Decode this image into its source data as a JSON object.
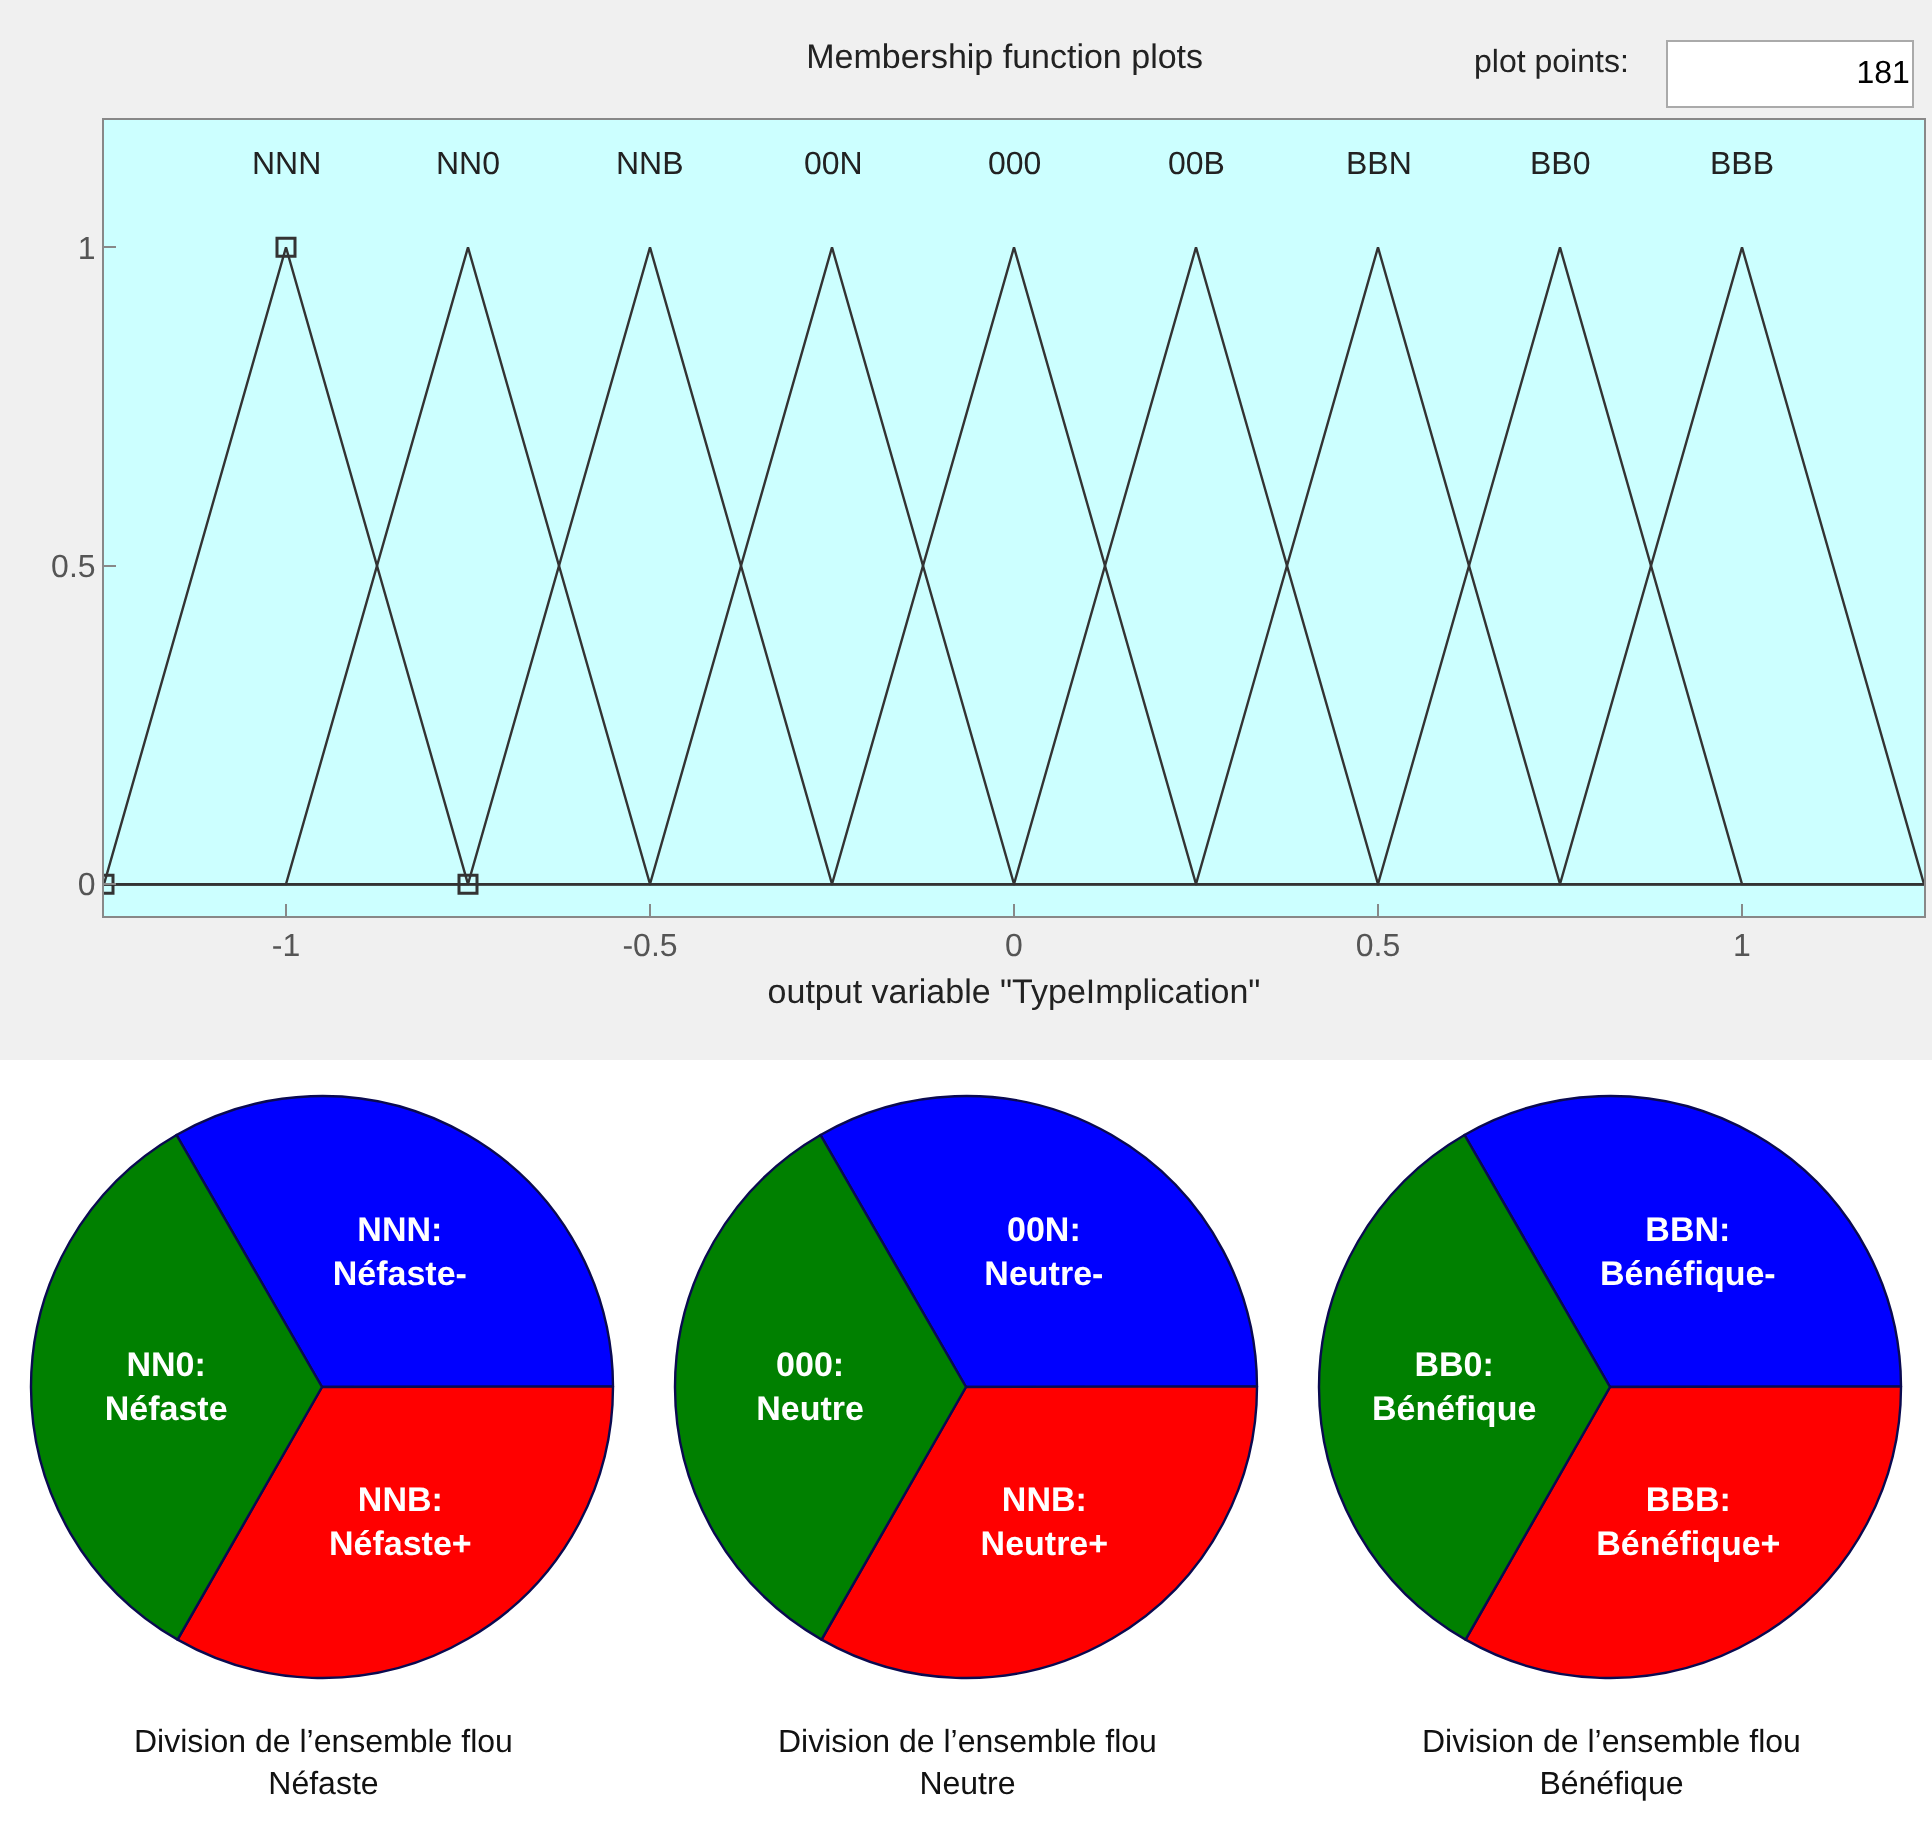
{
  "chart_data": [
    {
      "type": "line",
      "title": "Membership function plots",
      "xlabel": "output variable \"TypeImplication\"",
      "xlim": [
        -1.25,
        1.25
      ],
      "ylim": [
        -0.05,
        1.2
      ],
      "xticks": [
        -1,
        -0.5,
        0,
        0.5,
        1
      ],
      "yticks": [
        0,
        0.5,
        1
      ],
      "grid": false,
      "legend": false,
      "marker": "none",
      "line_style": "solid",
      "annotations": [
        "plot points:",
        "181"
      ],
      "series": [
        {
          "name": "NNN",
          "color": "#333333",
          "marker": "square",
          "x": [
            -1.25,
            -1,
            -0.75
          ],
          "values": [
            0,
            1,
            0
          ]
        },
        {
          "name": "NN0",
          "color": "#333333",
          "x": [
            -1.25,
            -1,
            -0.75,
            -0.5,
            1.25
          ],
          "values": [
            0,
            0,
            1,
            0,
            0
          ]
        },
        {
          "name": "NNB",
          "color": "#333333",
          "x": [
            -1.25,
            -0.75,
            -0.5,
            -0.25,
            1.25
          ],
          "values": [
            0,
            0,
            1,
            0,
            0
          ]
        },
        {
          "name": "00N",
          "color": "#333333",
          "x": [
            -1.25,
            -0.5,
            -0.25,
            0,
            1.25
          ],
          "values": [
            0,
            0,
            1,
            0,
            0
          ]
        },
        {
          "name": "000",
          "color": "#333333",
          "x": [
            -1.25,
            -0.25,
            0,
            0.25,
            1.25
          ],
          "values": [
            0,
            0,
            1,
            0,
            0
          ]
        },
        {
          "name": "00B",
          "color": "#333333",
          "x": [
            -1.25,
            0,
            0.25,
            0.5,
            1.25
          ],
          "values": [
            0,
            0,
            1,
            0,
            0
          ]
        },
        {
          "name": "BBN",
          "color": "#333333",
          "x": [
            -1.25,
            0.25,
            0.5,
            0.75,
            1.25
          ],
          "values": [
            0,
            0,
            1,
            0,
            0
          ]
        },
        {
          "name": "BB0",
          "color": "#333333",
          "x": [
            -1.25,
            0.5,
            0.75,
            1,
            1.25
          ],
          "values": [
            0,
            0,
            1,
            0,
            0
          ]
        },
        {
          "name": "BBB",
          "color": "#333333",
          "x": [
            -1.25,
            0.75,
            1,
            1.25
          ],
          "values": [
            0,
            0,
            1,
            0
          ]
        }
      ]
    },
    {
      "type": "pie",
      "title": "Division de l’ensemble flou Néfaste",
      "categories": [
        "NNN: Néfaste-",
        "NNB: Néfaste+",
        "NN0: Néfaste"
      ],
      "values": [
        33.3,
        33.3,
        33.4
      ],
      "colors": [
        "#0000ff",
        "#ff0000",
        "#008000"
      ]
    },
    {
      "type": "pie",
      "title": "Division de l’ensemble flou Neutre",
      "categories": [
        "00N: Neutre-",
        "NNB: Neutre+",
        "000: Neutre"
      ],
      "values": [
        33.3,
        33.3,
        33.4
      ],
      "colors": [
        "#0000ff",
        "#ff0000",
        "#008000"
      ]
    },
    {
      "type": "pie",
      "title": "Division de l’ensemble flou Bénéfique",
      "categories": [
        "BBN: Bénéfique-",
        "BBB: Bénéfique+",
        "BB0: Bénéfique"
      ],
      "values": [
        33.3,
        33.3,
        33.4
      ],
      "colors": [
        "#0000ff",
        "#ff0000",
        "#008000"
      ]
    }
  ]
}
